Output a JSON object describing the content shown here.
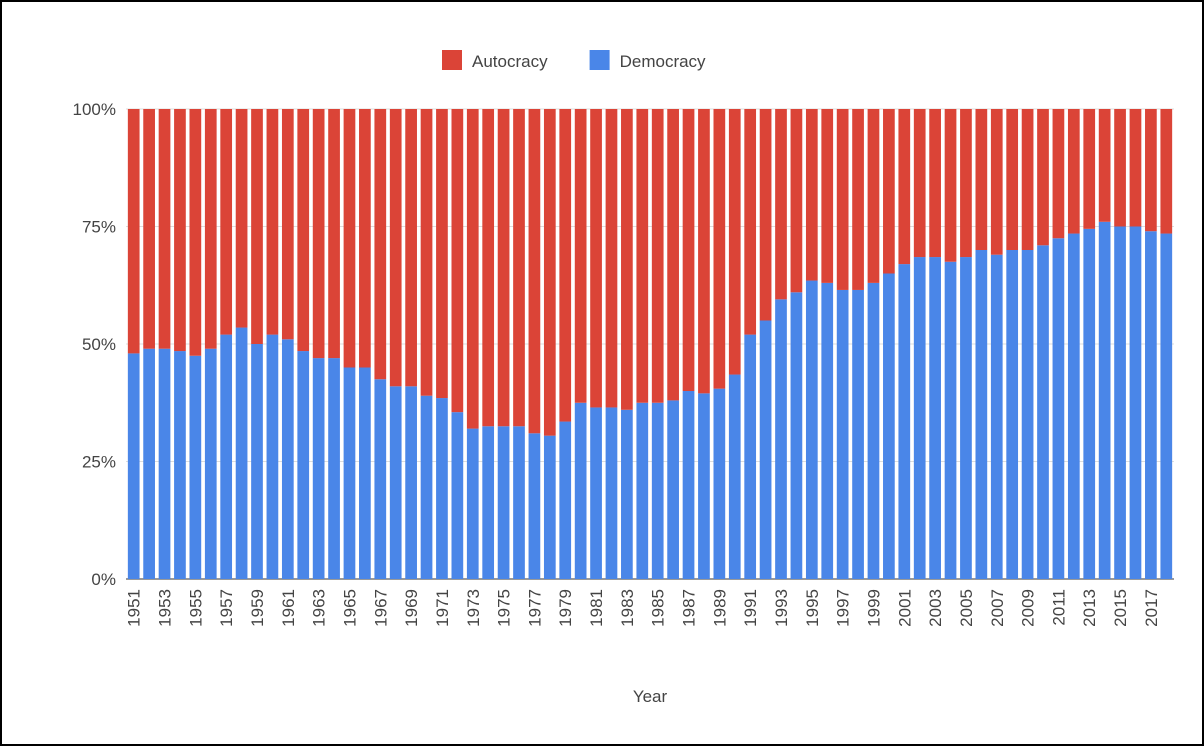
{
  "chart_data": {
    "type": "stacked-bar-100",
    "x_label": "Year",
    "categories": [
      "1951",
      null,
      "1953",
      null,
      "1955",
      null,
      "1957",
      null,
      "1959",
      null,
      "1961",
      null,
      "1963",
      null,
      "1965",
      null,
      "1967",
      null,
      "1969",
      null,
      "1971",
      null,
      "1973",
      null,
      "1975",
      null,
      "1977",
      null,
      "1979",
      null,
      "1981",
      null,
      "1983",
      null,
      "1985",
      null,
      "1987",
      null,
      "1989",
      null,
      "1991",
      null,
      "1993",
      null,
      "1995",
      null,
      "1997",
      null,
      "1999",
      null,
      "2001",
      null,
      "2003",
      null,
      "2005",
      null,
      "2007",
      null,
      "2009",
      null,
      "2011",
      null,
      "2013",
      null,
      "2015",
      null,
      "2017",
      null
    ],
    "series": [
      {
        "name": "Autocracy",
        "color": "#db4437",
        "values": [
          52,
          51,
          51,
          51.5,
          52.5,
          51,
          48,
          46.5,
          50,
          48,
          49,
          51.5,
          53,
          53,
          55,
          55,
          57.5,
          59,
          59,
          61,
          61.5,
          64.5,
          68,
          67.5,
          67.5,
          67.5,
          69,
          69.5,
          66.5,
          62.5,
          63.5,
          63.5,
          64,
          62.5,
          62.5,
          62,
          60,
          60.5,
          59.5,
          56.5,
          48,
          45,
          40.5,
          39,
          36.5,
          37,
          38.5,
          38.5,
          37,
          35,
          33,
          31.5,
          31.5,
          32.5,
          31.5,
          30,
          31,
          30,
          30,
          29,
          27.5,
          26.5,
          25.5,
          24,
          25,
          25,
          26,
          26.5
        ]
      },
      {
        "name": "Democracy",
        "color": "#4a86e8",
        "values": [
          48,
          49,
          49,
          48.5,
          47.5,
          49,
          52,
          53.5,
          50,
          52,
          51,
          48.5,
          47,
          47,
          45,
          45,
          42.5,
          41,
          41,
          39,
          38.5,
          35.5,
          32,
          32.5,
          32.5,
          32.5,
          31,
          30.5,
          33.5,
          37.5,
          36.5,
          36.5,
          36,
          37.5,
          37.5,
          38,
          40,
          39.5,
          40.5,
          43.5,
          52,
          55,
          59.5,
          61,
          63.5,
          63,
          61.5,
          61.5,
          63,
          65,
          67,
          68.5,
          68.5,
          67.5,
          68.5,
          70,
          69,
          70,
          70,
          71,
          72.5,
          73.5,
          74.5,
          76,
          75,
          75,
          74,
          73.5
        ]
      }
    ],
    "ylim": [
      0,
      100
    ],
    "yticks": [
      {
        "value": 0,
        "label": "0%"
      },
      {
        "value": 25,
        "label": "25%"
      },
      {
        "value": 50,
        "label": "50%"
      },
      {
        "value": 75,
        "label": "75%"
      },
      {
        "value": 100,
        "label": "100%"
      }
    ],
    "grid": true
  }
}
